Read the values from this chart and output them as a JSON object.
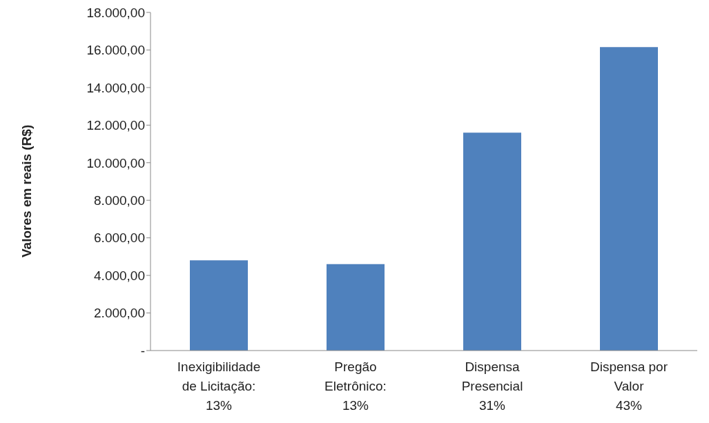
{
  "chart_data": {
    "type": "bar",
    "ylabel": "Valores em reais (R$)",
    "categories": [
      "Inexigibilidade\nde Licitação:\n13%",
      "Pregão\nEletrônico:\n13%",
      "Dispensa\nPresencial\n31%",
      "Dispensa por\nValor\n43%"
    ],
    "values": [
      4800,
      4600,
      11600,
      16150
    ],
    "color": "#4f81bd",
    "ylim": [
      0,
      18000
    ],
    "yticks": [
      {
        "value": 0,
        "label": "-"
      },
      {
        "value": 2000,
        "label": "2.000,00"
      },
      {
        "value": 4000,
        "label": "4.000,00"
      },
      {
        "value": 6000,
        "label": "6.000,00"
      },
      {
        "value": 8000,
        "label": "8.000,00"
      },
      {
        "value": 10000,
        "label": "10.000,00"
      },
      {
        "value": 12000,
        "label": "12.000,00"
      },
      {
        "value": 14000,
        "label": "14.000,00"
      },
      {
        "value": 16000,
        "label": "16.000,00"
      },
      {
        "value": 18000,
        "label": "18.000,00"
      }
    ],
    "grid": false,
    "legend": false
  }
}
